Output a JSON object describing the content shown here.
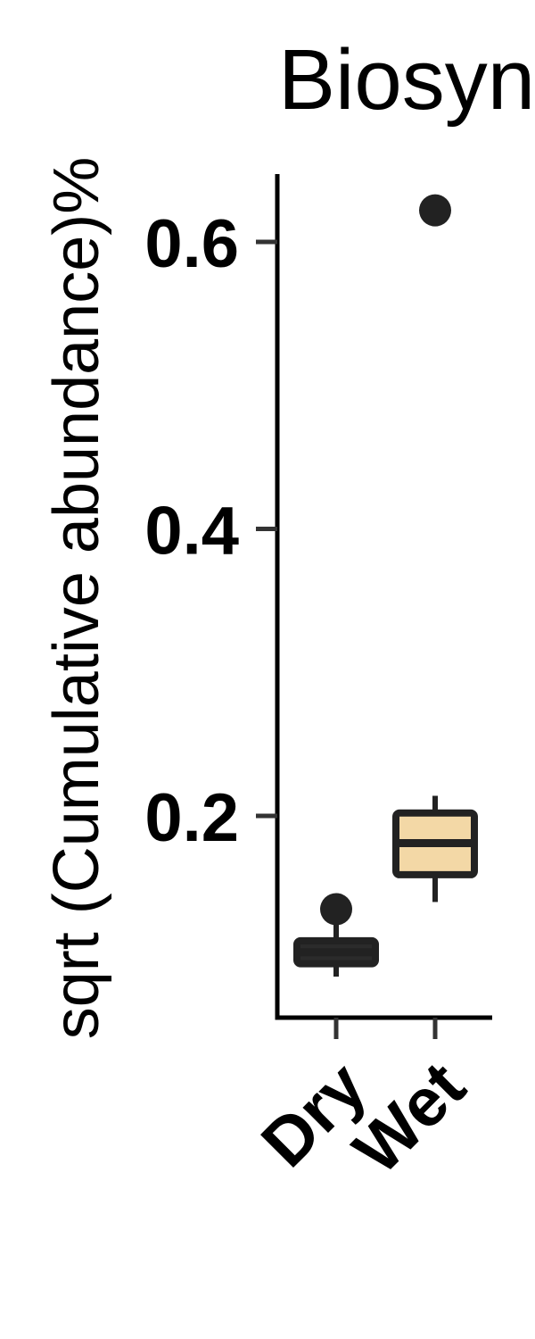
{
  "chart_data": {
    "type": "box",
    "title": "Biosyn",
    "ylabel": "sqrt (Cumulative abundance)%",
    "xlabel": "",
    "ylim": [
      0.0,
      0.65
    ],
    "yticks": [
      {
        "value": 0.2,
        "label": "0.2"
      },
      {
        "value": 0.4,
        "label": "0.4"
      },
      {
        "value": 0.6,
        "label": "0.6"
      }
    ],
    "categories": [
      "Dry",
      "Wet"
    ],
    "boxes": [
      {
        "category": "Dry",
        "whisker_low": 0.088,
        "q1": 0.097,
        "median": 0.105,
        "q3": 0.113,
        "whisker_high": 0.125,
        "outliers": [
          0.135
        ],
        "fill": "#2b2b2b"
      },
      {
        "category": "Wet",
        "whisker_low": 0.14,
        "q1": 0.159,
        "median": 0.181,
        "q3": 0.202,
        "whisker_high": 0.214,
        "outliers": [
          0.622
        ],
        "fill": "#f3d8a6"
      }
    ],
    "grid": false,
    "legend": "none",
    "colors": {
      "axis": "#000000",
      "box_stroke": "#222222",
      "tick": "#333333"
    }
  }
}
